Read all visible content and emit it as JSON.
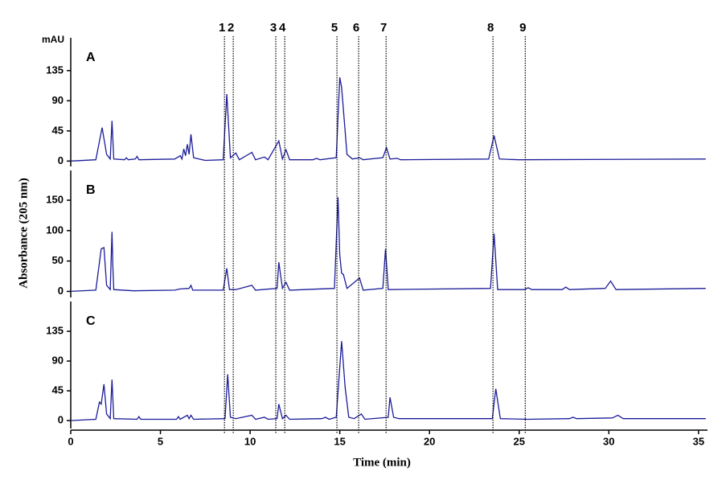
{
  "chart_data": {
    "type": "line",
    "xlabel": "Time (min)",
    "ylabel": "Absorbance (205 nm)",
    "yunit": "mAU",
    "xlim": [
      0,
      35.5
    ],
    "xticks": [
      0,
      5,
      10,
      15,
      20,
      25,
      30,
      35
    ],
    "peaks": {
      "labels": [
        "1",
        "2",
        "3",
        "4",
        "5",
        "6",
        "7",
        "8",
        "9"
      ],
      "x": [
        8.57,
        9.06,
        11.43,
        11.93,
        14.84,
        16.05,
        17.58,
        23.54,
        25.34
      ]
    },
    "panels": [
      {
        "label": "A",
        "color": "#1c1c9a",
        "ylim": [
          -8,
          184
        ],
        "yticks": [
          0,
          45,
          90,
          135
        ],
        "x": [
          0,
          1.4,
          1.75,
          2.0,
          2.2,
          2.3,
          2.4,
          3.0,
          3.1,
          3.2,
          3.6,
          3.7,
          3.8,
          5.8,
          6.1,
          6.2,
          6.3,
          6.4,
          6.5,
          6.6,
          6.7,
          6.85,
          7.5,
          8.5,
          8.7,
          8.9,
          9.2,
          9.4,
          10.1,
          10.3,
          10.8,
          11.0,
          11.6,
          11.8,
          12.0,
          12.2,
          13.5,
          13.7,
          13.9,
          14.8,
          15.0,
          15.1,
          15.4,
          15.7,
          16.1,
          16.3,
          17.4,
          17.6,
          17.8,
          18.2,
          18.4,
          23.3,
          23.6,
          23.9,
          25.0,
          35.4
        ],
        "values": [
          0,
          2,
          50,
          10,
          3,
          60,
          3,
          2,
          5,
          2,
          3,
          7,
          2,
          3,
          8,
          3,
          18,
          8,
          25,
          10,
          40,
          5,
          1,
          2,
          100,
          5,
          12,
          2,
          13,
          2,
          6,
          2,
          30,
          3,
          17,
          2,
          2,
          4,
          2,
          5,
          125,
          110,
          10,
          3,
          5,
          2,
          5,
          20,
          3,
          4,
          2,
          3,
          38,
          3,
          2,
          3
        ]
      },
      {
        "label": "B",
        "color": "#1c1c9a",
        "ylim": [
          -10,
          199
        ],
        "yticks": [
          0,
          50,
          100,
          150
        ],
        "x": [
          0,
          1.4,
          1.7,
          1.85,
          2.0,
          2.2,
          2.3,
          2.35,
          2.4,
          3.5,
          5.8,
          6.1,
          6.6,
          6.7,
          6.8,
          8.5,
          8.7,
          8.85,
          9.2,
          10.1,
          10.3,
          11.5,
          11.6,
          11.8,
          12.0,
          12.2,
          14.7,
          14.9,
          15.0,
          15.1,
          15.2,
          15.4,
          16.1,
          16.3,
          17.4,
          17.55,
          17.7,
          23.4,
          23.6,
          23.8,
          25.3,
          25.5,
          25.7,
          27.4,
          27.6,
          27.8,
          29.8,
          30.1,
          30.4,
          35.4
        ],
        "values": [
          0,
          2,
          70,
          72,
          10,
          3,
          98,
          40,
          3,
          1,
          2,
          4,
          5,
          10,
          2,
          2,
          38,
          3,
          3,
          10,
          2,
          5,
          48,
          5,
          15,
          2,
          5,
          155,
          60,
          30,
          28,
          5,
          22,
          2,
          5,
          70,
          3,
          5,
          95,
          3,
          3,
          6,
          3,
          3,
          7,
          3,
          5,
          17,
          3,
          5
        ]
      },
      {
        "label": "C",
        "color": "#1c1c9a",
        "ylim": [
          -12,
          180
        ],
        "yticks": [
          0,
          45,
          90,
          135
        ],
        "x": [
          0,
          1.4,
          1.6,
          1.7,
          1.85,
          2.0,
          2.2,
          2.3,
          2.4,
          3.7,
          3.8,
          3.9,
          5.9,
          6.0,
          6.1,
          6.5,
          6.6,
          6.7,
          6.85,
          8.6,
          8.75,
          8.9,
          9.2,
          10.1,
          10.3,
          10.8,
          11.0,
          11.5,
          11.6,
          11.8,
          12.0,
          12.2,
          14.0,
          14.2,
          14.4,
          14.8,
          15.1,
          15.3,
          15.5,
          15.8,
          16.2,
          16.4,
          17.7,
          17.8,
          18.0,
          18.3,
          23.5,
          23.7,
          23.95,
          25.5,
          27.8,
          28.0,
          28.2,
          30.2,
          30.5,
          30.8,
          35.4
        ],
        "values": [
          0,
          2,
          28,
          25,
          55,
          10,
          3,
          62,
          3,
          2,
          6,
          2,
          2,
          6,
          2,
          8,
          3,
          8,
          2,
          3,
          70,
          5,
          3,
          8,
          2,
          5,
          2,
          3,
          25,
          3,
          8,
          2,
          3,
          5,
          2,
          5,
          120,
          50,
          5,
          3,
          10,
          2,
          5,
          35,
          5,
          3,
          3,
          48,
          3,
          2,
          3,
          5,
          3,
          4,
          8,
          3,
          3
        ]
      }
    ]
  }
}
